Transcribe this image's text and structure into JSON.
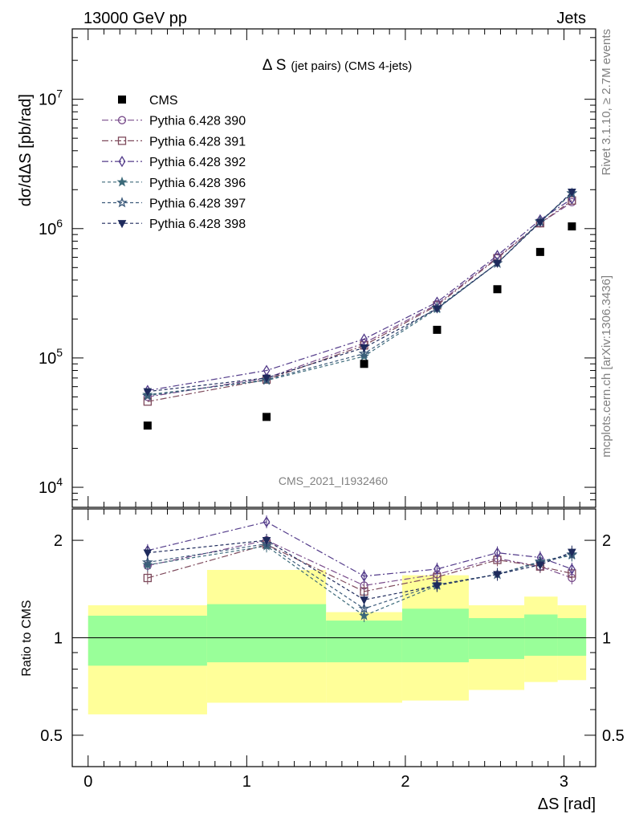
{
  "header": {
    "left": "13000 GeV pp",
    "right": "Jets"
  },
  "side_labels": {
    "rivet": "Rivet 3.1.10, ≥ 2.7M events",
    "source": "mcplots.cern.ch [arXiv:1306.3436]"
  },
  "colors": {
    "cms": "#000000",
    "band_inner": "#99ff99",
    "band_outer": "#ffff99"
  },
  "chart_data": {
    "type": "line",
    "title_main": "Δ S",
    "title_sub": "(jet pairs) (CMS 4-jets)",
    "watermark": "CMS_2021_I1932460",
    "xlabel": "ΔS [rad]",
    "ylabel": "dσ/dΔS [pb/rad]",
    "ratio_ylabel": "Ratio to CMS",
    "xlim": [
      -0.1,
      3.2
    ],
    "ylim": [
      7000,
      35000000
    ],
    "ylog": true,
    "ratio_ylim": [
      0.4,
      2.5
    ],
    "ratio_ylog": true,
    "xticks": [
      0,
      1,
      2,
      3
    ],
    "yticks": [
      {
        "value": 10000,
        "label": "10"
      },
      {
        "value": 100000,
        "label": "10"
      },
      {
        "value": 1000000,
        "label": "10"
      },
      {
        "value": 10000000,
        "label": "10"
      }
    ],
    "ytick_exps": [
      "4",
      "5",
      "6",
      "7"
    ],
    "ratio_yticks": [
      0.5,
      1,
      2
    ],
    "x": [
      0.375,
      1.125,
      1.74,
      2.2,
      2.58,
      2.85,
      3.05
    ],
    "bins": [
      [
        0,
        0.75
      ],
      [
        0.75,
        1.5
      ],
      [
        1.5,
        1.98
      ],
      [
        1.98,
        2.4
      ],
      [
        2.4,
        2.75
      ],
      [
        2.75,
        2.96
      ],
      [
        2.96,
        3.14
      ]
    ],
    "band_inner": [
      [
        0.82,
        1.17
      ],
      [
        0.84,
        1.27
      ],
      [
        0.84,
        1.13
      ],
      [
        0.84,
        1.23
      ],
      [
        0.86,
        1.15
      ],
      [
        0.88,
        1.18
      ],
      [
        0.88,
        1.15
      ]
    ],
    "band_outer": [
      [
        0.58,
        1.26
      ],
      [
        0.63,
        1.62
      ],
      [
        0.63,
        1.2
      ],
      [
        0.64,
        1.56
      ],
      [
        0.69,
        1.26
      ],
      [
        0.73,
        1.34
      ],
      [
        0.74,
        1.26
      ]
    ],
    "data": {
      "name": "CMS",
      "values": [
        30000,
        35000,
        90000,
        165000,
        340000,
        660000,
        1040000
      ]
    },
    "series": [
      {
        "name": "Pythia 6.428 390",
        "color": "#7a4d8c",
        "marker": "circle",
        "dash": "8,3,2,3",
        "values": [
          50000,
          70000,
          130000,
          260000,
          600000,
          1100000,
          1600000
        ],
        "ratio": [
          1.67,
          2.0,
          1.45,
          1.57,
          1.76,
          1.66,
          1.53
        ]
      },
      {
        "name": "Pythia 6.428 391",
        "color": "#7e4a5c",
        "marker": "square",
        "dash": "8,3,2,3",
        "values": [
          46000,
          68000,
          125000,
          255000,
          590000,
          1100000,
          1650000
        ],
        "ratio": [
          1.53,
          1.94,
          1.39,
          1.54,
          1.74,
          1.66,
          1.58
        ]
      },
      {
        "name": "Pythia 6.428 392",
        "color": "#533b8a",
        "marker": "diamond",
        "dash": "8,3,2,3",
        "values": [
          56000,
          80000,
          140000,
          270000,
          620000,
          1170000,
          1700000
        ],
        "ratio": [
          1.86,
          2.28,
          1.55,
          1.63,
          1.83,
          1.77,
          1.63
        ]
      },
      {
        "name": "Pythia 6.428 396",
        "color": "#3c6a7a",
        "marker": "star",
        "dash": "4,3",
        "values": [
          52000,
          67000,
          103000,
          240000,
          540000,
          1130000,
          1870000
        ],
        "ratio": [
          1.68,
          1.92,
          1.17,
          1.45,
          1.57,
          1.71,
          1.8
        ]
      },
      {
        "name": "Pythia 6.428 397",
        "color": "#3c5a7a",
        "marker": "star-open",
        "dash": "4,3",
        "values": [
          51000,
          68000,
          108000,
          245000,
          540000,
          1140000,
          1880000
        ],
        "ratio": [
          1.71,
          1.95,
          1.23,
          1.46,
          1.57,
          1.72,
          1.81
        ]
      },
      {
        "name": "Pythia 6.428 398",
        "color": "#1e2a5c",
        "marker": "triangle-down",
        "dash": "4,3",
        "values": [
          55000,
          70000,
          120000,
          240000,
          540000,
          1120000,
          1920000
        ],
        "ratio": [
          1.83,
          2.0,
          1.31,
          1.45,
          1.57,
          1.68,
          1.84
        ]
      }
    ]
  }
}
